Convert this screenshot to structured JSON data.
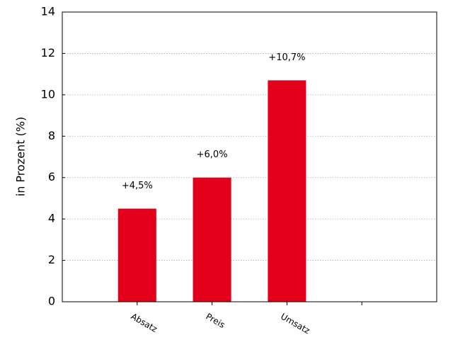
{
  "chart_data": {
    "type": "bar",
    "y_label": "in Prozent (%)",
    "categories": [
      "Absatz",
      "Preis",
      "Umsatz",
      null
    ],
    "values": [
      4.5,
      6.0,
      10.7,
      null
    ],
    "value_labels": [
      "+4,5%",
      "+6,0%",
      "+10,7%",
      null
    ],
    "color": "#e2001a",
    "ylim": [
      0,
      14
    ],
    "yticks": [
      0,
      2,
      4,
      6,
      8,
      10,
      12,
      14
    ],
    "grid": true
  }
}
